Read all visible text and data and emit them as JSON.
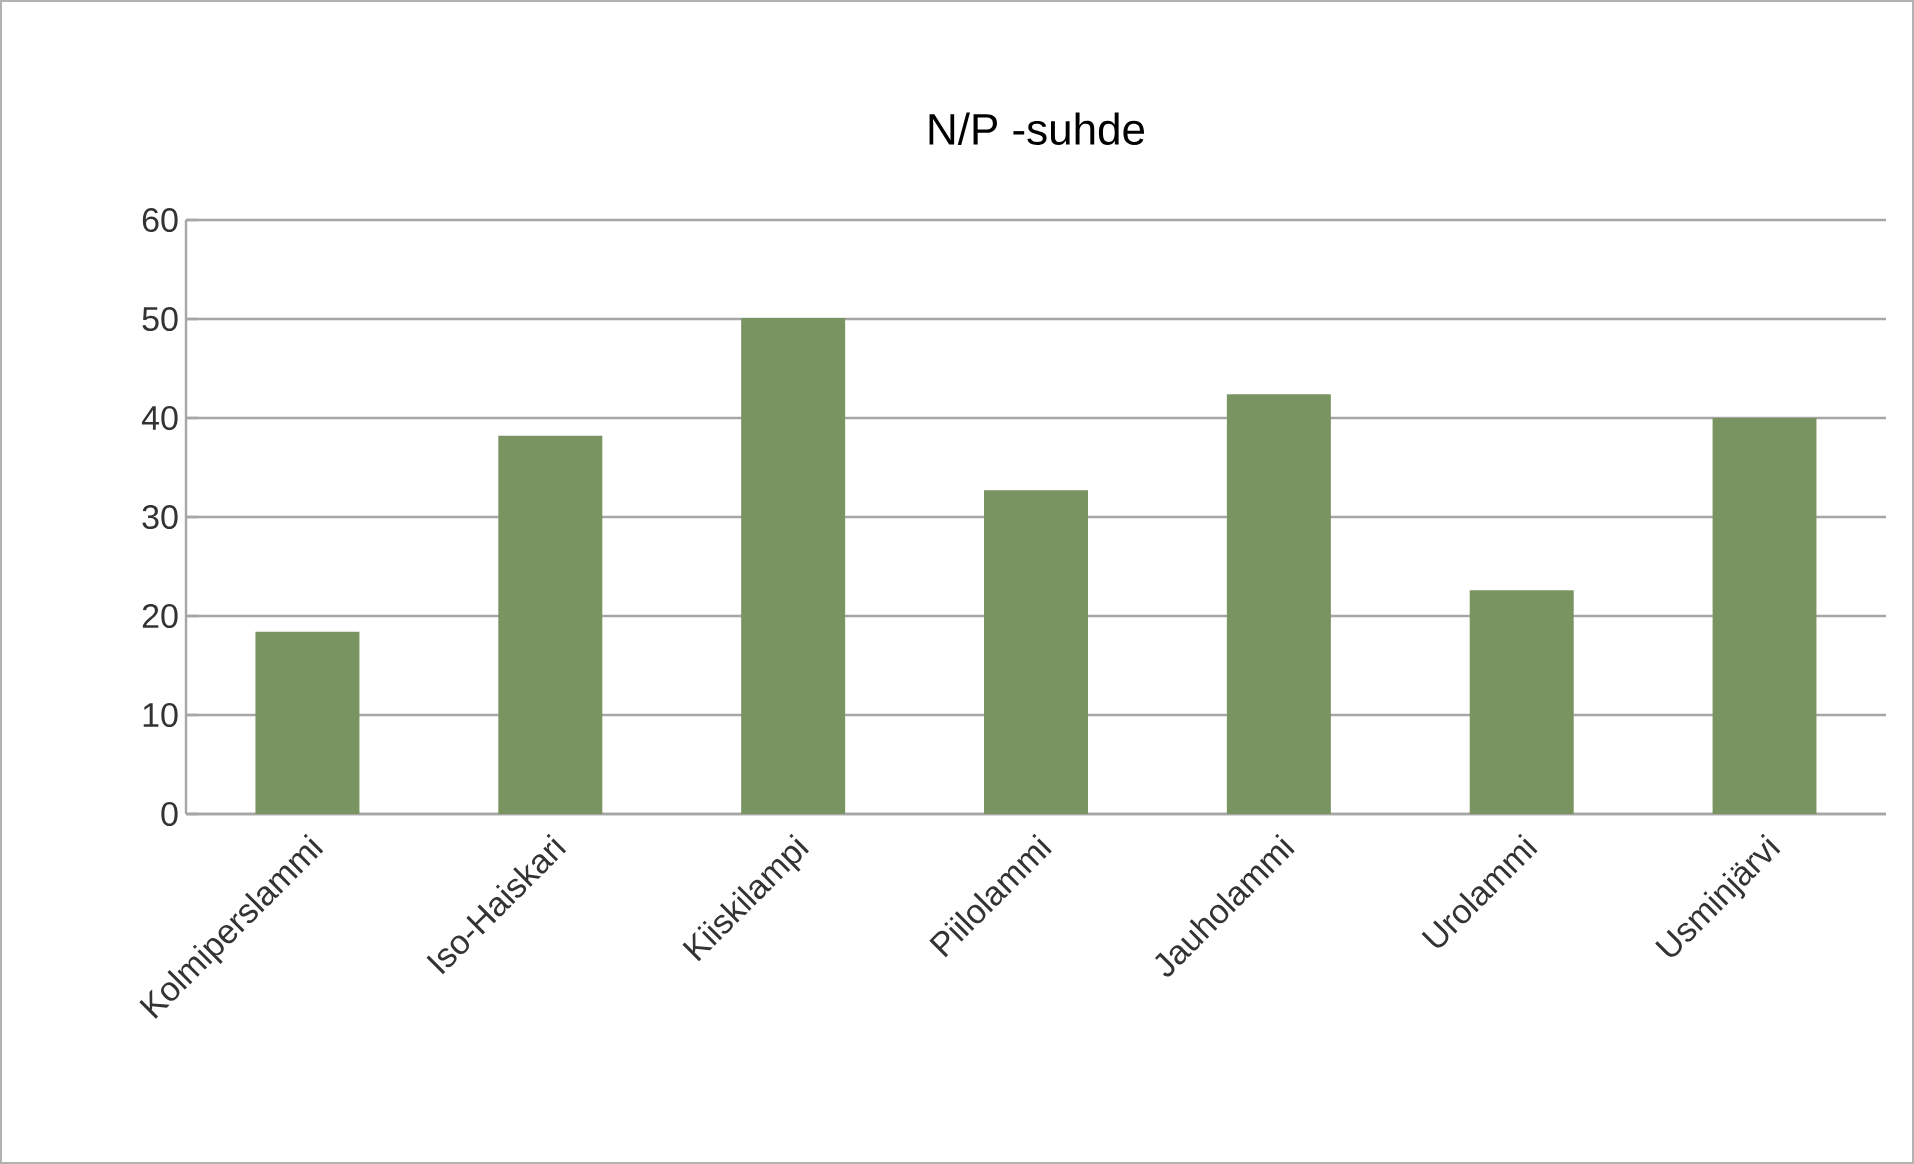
{
  "chart_data": {
    "type": "bar",
    "title": "N/P -suhde",
    "categories": [
      "Kolmiperslammi",
      "Iso-Haiskari",
      "Kiiskilampi",
      "Piilolammi",
      "Jauholammi",
      "Urolammi",
      "Usminjärvi"
    ],
    "values": [
      18.4,
      38.2,
      50.1,
      32.7,
      42.4,
      22.6,
      40.0
    ],
    "color": "#7a9461",
    "ylim": [
      0,
      60
    ],
    "yticks": [
      0,
      10,
      20,
      30,
      40,
      50,
      60
    ],
    "grid": "y"
  }
}
